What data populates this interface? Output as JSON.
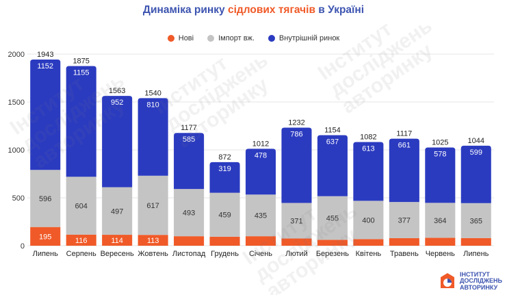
{
  "title": {
    "part1": "Динаміка ринку ",
    "part2": "сідлових тягачів",
    "part3": " в Україні"
  },
  "colors": {
    "new": "#f05a28",
    "import": "#c4c4c4",
    "domestic": "#2b3bc0",
    "title_primary": "#3d54b0",
    "title_accent": "#f05a28"
  },
  "watermark": {
    "line1": "Інститут",
    "line2": "досліджень",
    "line3": "авторинку"
  },
  "logo": {
    "line1": "ІНСТИТУТ",
    "line2": "ДОСЛІДЖЕНЬ",
    "line3": "АВТОРИНКУ"
  },
  "chart_data": {
    "type": "bar",
    "stacked": true,
    "title": "Динаміка ринку сідлових тягачів в Україні",
    "xlabel": "",
    "ylabel": "",
    "ylim": [
      0,
      2000
    ],
    "yticks": [
      0,
      500,
      1000,
      1500,
      2000
    ],
    "grid": true,
    "legend": "top-center",
    "categories": [
      "Липень",
      "Серпень",
      "Вересень",
      "Жовтень",
      "Листопад",
      "Грудень",
      "Січень",
      "Лютий",
      "Березень",
      "Квітень",
      "Травень",
      "Червень",
      "Липень"
    ],
    "series": [
      {
        "name": "Нові",
        "color": "#f05a28",
        "values": [
          195,
          116,
          114,
          113,
          99,
          94,
          99,
          75,
          62,
          69,
          79,
          83,
          80
        ],
        "labels": [
          "195",
          "116",
          "114",
          "113",
          "",
          "",
          "",
          "",
          "",
          "",
          "",
          "",
          ""
        ]
      },
      {
        "name": "Імпорт вж.",
        "color": "#c4c4c4",
        "values": [
          596,
          604,
          497,
          617,
          493,
          459,
          435,
          371,
          455,
          400,
          377,
          364,
          365
        ],
        "labels": [
          "596",
          "604",
          "497",
          "617",
          "493",
          "459",
          "435",
          "371",
          "455",
          "400",
          "377",
          "364",
          "365"
        ]
      },
      {
        "name": "Внутрішній ринок",
        "color": "#2b3bc0",
        "values": [
          1152,
          1155,
          952,
          810,
          585,
          319,
          478,
          786,
          637,
          613,
          661,
          578,
          599
        ],
        "labels": [
          "1152",
          "1155",
          "952",
          "810",
          "585",
          "319",
          "478",
          "786",
          "637",
          "613",
          "661",
          "578",
          "599"
        ]
      }
    ],
    "totals": [
      "1943",
      "1875",
      "1563",
      "1540",
      "1177",
      "872",
      "1012",
      "1232",
      "1154",
      "1082",
      "1117",
      "1025",
      "1044"
    ]
  }
}
